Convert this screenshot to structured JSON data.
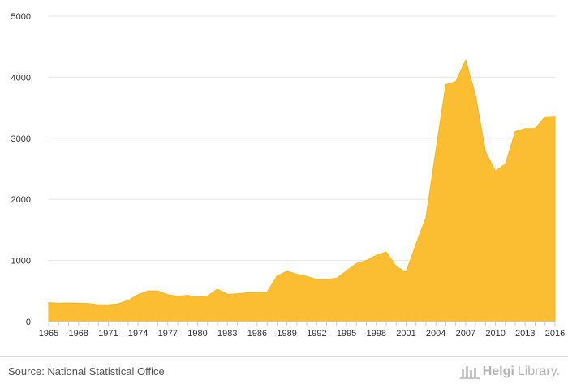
{
  "chart_data": {
    "type": "area",
    "title": "",
    "xlabel": "",
    "ylabel": "",
    "ylim": [
      0,
      5000
    ],
    "yticks": [
      0,
      1000,
      2000,
      3000,
      4000,
      5000
    ],
    "xtick_labels": [
      "1965",
      "1968",
      "1971",
      "1974",
      "1977",
      "1980",
      "1983",
      "1986",
      "1989",
      "1992",
      "1995",
      "1998",
      "2001",
      "2004",
      "2007",
      "2010",
      "2013",
      "2016"
    ],
    "grid": true,
    "color": "#FBBE33",
    "x": [
      1965,
      1966,
      1967,
      1968,
      1969,
      1970,
      1971,
      1972,
      1973,
      1974,
      1975,
      1976,
      1977,
      1978,
      1979,
      1980,
      1981,
      1982,
      1983,
      1984,
      1985,
      1986,
      1987,
      1988,
      1989,
      1990,
      1991,
      1992,
      1993,
      1994,
      1995,
      1996,
      1997,
      1998,
      1999,
      2000,
      2001,
      2002,
      2003,
      2004,
      2005,
      2006,
      2007,
      2008,
      2009,
      2010,
      2011,
      2012,
      2013,
      2014,
      2015,
      2016
    ],
    "values": [
      310,
      300,
      305,
      300,
      295,
      275,
      275,
      290,
      345,
      440,
      500,
      500,
      440,
      415,
      430,
      400,
      420,
      530,
      445,
      455,
      470,
      475,
      480,
      745,
      825,
      775,
      740,
      690,
      690,
      710,
      830,
      950,
      1000,
      1085,
      1140,
      900,
      810,
      1270,
      1700,
      2800,
      3880,
      3930,
      4280,
      3700,
      2780,
      2460,
      2580,
      3110,
      3160,
      3160,
      3350,
      3360
    ]
  },
  "footer": {
    "source": "Source: National Statistical Office",
    "brand_part1": "Helgi",
    "brand_part2": "Library."
  }
}
